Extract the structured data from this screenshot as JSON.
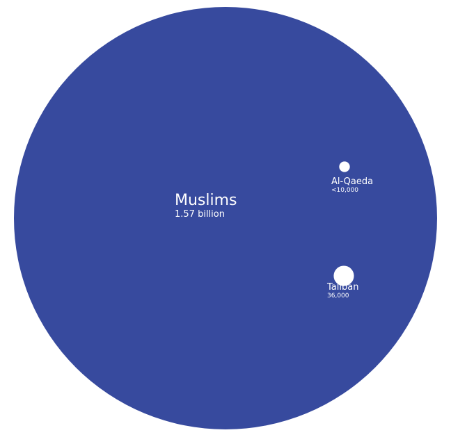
{
  "chart_data": {
    "type": "bubble",
    "color": "#374a9e",
    "label_color": "#ffffff",
    "items": [
      {
        "name": "Muslims",
        "value_label": "1.57 billion",
        "value": 1570000000
      },
      {
        "name": "Al-Qaeda",
        "value_label": "<10,000",
        "value": 10000
      },
      {
        "name": "Taliban",
        "value_label": "36,000",
        "value": 36000
      }
    ]
  }
}
